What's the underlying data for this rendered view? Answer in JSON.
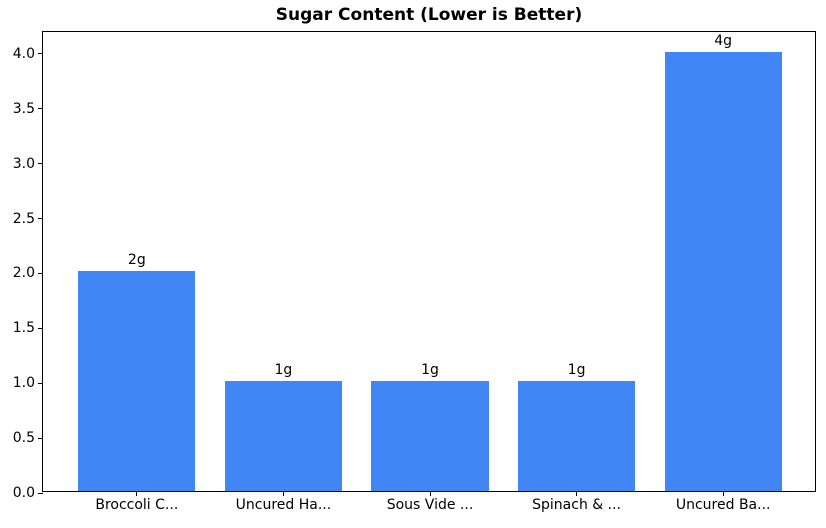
{
  "chart_data": {
    "type": "bar",
    "title": "Sugar Content (Lower is Better)",
    "categories": [
      "Broccoli C...",
      "Uncured Ha...",
      "Sous Vide ...",
      "Spinach & ...",
      "Uncured Ba..."
    ],
    "values": [
      2,
      1,
      1,
      1,
      4
    ],
    "bar_labels": [
      "2g",
      "1g",
      "1g",
      "1g",
      "4g"
    ],
    "xlabel": "",
    "ylabel": "",
    "ylim": [
      0,
      4.2
    ],
    "yticks": [
      0,
      0.5,
      1,
      1.5,
      2,
      2.5,
      3,
      3.5,
      4
    ],
    "ytick_labels": [
      "0.0",
      "0.5",
      "1.0",
      "1.5",
      "2.0",
      "2.5",
      "3.0",
      "3.5",
      "4.0"
    ],
    "bar_width_fraction": 0.8,
    "x_axis_margin": 0.24,
    "grid": false,
    "legend": null,
    "colors": {
      "bar": "#4285F4",
      "axis": "#000000",
      "text": "#000000",
      "background": "#ffffff"
    }
  }
}
